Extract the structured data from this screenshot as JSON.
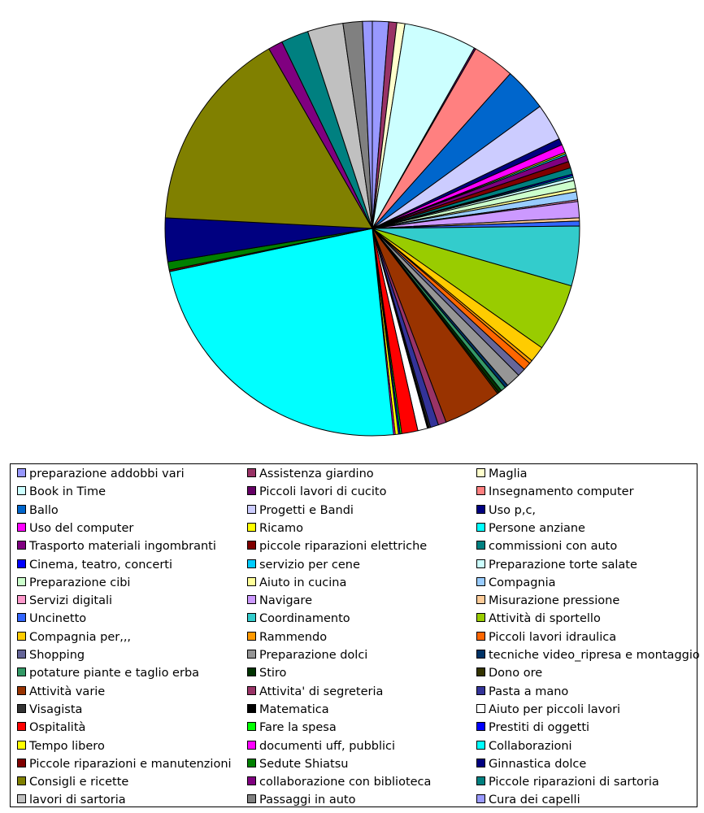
{
  "chart_data": {
    "type": "pie",
    "title": "",
    "legend_position": "bottom",
    "series": [
      {
        "name": "preparazione addobbi vari",
        "value": 1.0,
        "color": "#9999FF"
      },
      {
        "name": "Assistenza giardino",
        "value": 0.5,
        "color": "#993366"
      },
      {
        "name": "Maglia",
        "value": 0.5,
        "color": "#FFFFCC"
      },
      {
        "name": "Book in Time",
        "value": 4.5,
        "color": "#CCFFFF"
      },
      {
        "name": "Piccoli lavori di cucito",
        "value": 0.1,
        "color": "#660066"
      },
      {
        "name": "Insegnamento computer",
        "value": 2.6,
        "color": "#FF8080"
      },
      {
        "name": "Ballo",
        "value": 2.7,
        "color": "#0066CC"
      },
      {
        "name": "Progetti e Bandi",
        "value": 2.3,
        "color": "#CCCCFF"
      },
      {
        "name": "Uso p,c,",
        "value": 0.4,
        "color": "#000080"
      },
      {
        "name": "Uso del computer",
        "value": 0.5,
        "color": "#FF00FF"
      },
      {
        "name": "Ricamo",
        "value": 0.1,
        "color": "#FFFF00"
      },
      {
        "name": "Persone anziane",
        "value": 0.1,
        "color": "#00FFFF"
      },
      {
        "name": "Trasporto materiali ingombranti",
        "value": 0.4,
        "color": "#800080"
      },
      {
        "name": "piccole riparazioni elettriche",
        "value": 0.4,
        "color": "#800000"
      },
      {
        "name": "commissioni con auto",
        "value": 0.4,
        "color": "#008080"
      },
      {
        "name": "Cinema, teatro, concerti",
        "value": 0.1,
        "color": "#0000FF"
      },
      {
        "name": "servizio per cene",
        "value": 0.1,
        "color": "#00CCFF"
      },
      {
        "name": "Preparazione torte salate",
        "value": 0.2,
        "color": "#CCFFFF"
      },
      {
        "name": "Preparazione cibi",
        "value": 0.5,
        "color": "#CCFFCC"
      },
      {
        "name": "Aiuto in cucina",
        "value": 0.2,
        "color": "#FFFF99"
      },
      {
        "name": "Compagnia",
        "value": 0.5,
        "color": "#99CCFF"
      },
      {
        "name": "Servizi digitali",
        "value": 0.1,
        "color": "#FF99CC"
      },
      {
        "name": "Navigare",
        "value": 1.0,
        "color": "#CC99FF"
      },
      {
        "name": "Misurazione pressione",
        "value": 0.2,
        "color": "#FFCC99"
      },
      {
        "name": "Uncinetto",
        "value": 0.3,
        "color": "#3366FF"
      },
      {
        "name": "Coordinamento",
        "value": 3.7,
        "color": "#33CCCC"
      },
      {
        "name": "Attività di sportello",
        "value": 4.2,
        "color": "#99CC00"
      },
      {
        "name": "Compagnia per,,,",
        "value": 1.0,
        "color": "#FFCC00"
      },
      {
        "name": "Rammendo",
        "value": 0.2,
        "color": "#FF9900"
      },
      {
        "name": "Piccoli lavori idraulica",
        "value": 0.5,
        "color": "#FF6600"
      },
      {
        "name": "Shopping",
        "value": 0.5,
        "color": "#666699"
      },
      {
        "name": "Preparazione dolci",
        "value": 0.9,
        "color": "#969696"
      },
      {
        "name": "tecniche video_ripresa e montaggio",
        "value": 0.2,
        "color": "#003366"
      },
      {
        "name": "potature piante e taglio erba",
        "value": 0.3,
        "color": "#339966"
      },
      {
        "name": "Stiro",
        "value": 0.2,
        "color": "#003300"
      },
      {
        "name": "Dono ore",
        "value": 0.1,
        "color": "#333300"
      },
      {
        "name": "Attività varie",
        "value": 3.6,
        "color": "#993300"
      },
      {
        "name": "Attivita' di segreteria",
        "value": 0.5,
        "color": "#993366"
      },
      {
        "name": "Pasta a mano",
        "value": 0.5,
        "color": "#333399"
      },
      {
        "name": "Visagista",
        "value": 0.1,
        "color": "#333333"
      },
      {
        "name": "Matematica",
        "value": 0.1,
        "color": "#000000"
      },
      {
        "name": "Aiuto per piccoli lavori",
        "value": 0.6,
        "color": "#FFFFFF"
      },
      {
        "name": "Ospitalità",
        "value": 1.0,
        "color": "#FF0000"
      },
      {
        "name": "Fare la spesa",
        "value": 0.1,
        "color": "#00FF00"
      },
      {
        "name": "Prestiti di oggetti",
        "value": 0.1,
        "color": "#0000FF"
      },
      {
        "name": "Tempo libero",
        "value": 0.2,
        "color": "#FFFF00"
      },
      {
        "name": "documenti uff, pubblici",
        "value": 0.1,
        "color": "#FF00FF"
      },
      {
        "name": "Collaborazioni",
        "value": 18.5,
        "color": "#00FFFF"
      },
      {
        "name": "Piccole riparazioni e manutenzioni",
        "value": 0.1,
        "color": "#800000"
      },
      {
        "name": "Sedute Shiatsu",
        "value": 0.5,
        "color": "#008000"
      },
      {
        "name": "Ginnastica dolce",
        "value": 2.7,
        "color": "#000080"
      },
      {
        "name": "Consigli e ricette",
        "value": 12.6,
        "color": "#808000"
      },
      {
        "name": "collaborazione con biblioteca",
        "value": 0.9,
        "color": "#800080"
      },
      {
        "name": "Piccole riparazioni di sartoria",
        "value": 1.7,
        "color": "#008080"
      },
      {
        "name": "lavori di sartoria",
        "value": 2.2,
        "color": "#C0C0C0"
      },
      {
        "name": "Passaggi in auto",
        "value": 1.2,
        "color": "#808080"
      },
      {
        "name": "Cura dei capelli",
        "value": 0.6,
        "color": "#9999FF"
      }
    ]
  }
}
